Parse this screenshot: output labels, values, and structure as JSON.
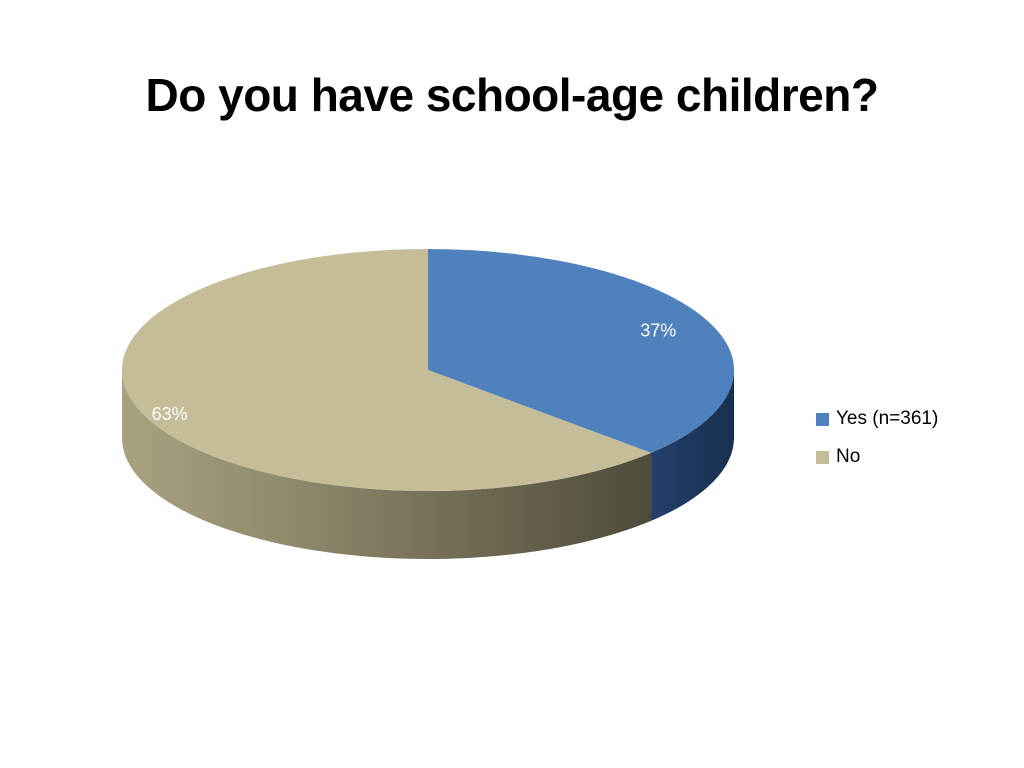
{
  "chart_data": {
    "type": "pie",
    "title": "Do you have school-age children?",
    "categories": [
      "Yes (n=361)",
      "No"
    ],
    "values": [
      37,
      63
    ],
    "data_labels": [
      "37%",
      "63%"
    ],
    "colors": [
      "#4F81BD",
      "#C4BD97"
    ],
    "side_colors": [
      "#1F3A5F",
      "#5F5A45"
    ],
    "legend_position": "right",
    "style": "3d"
  }
}
